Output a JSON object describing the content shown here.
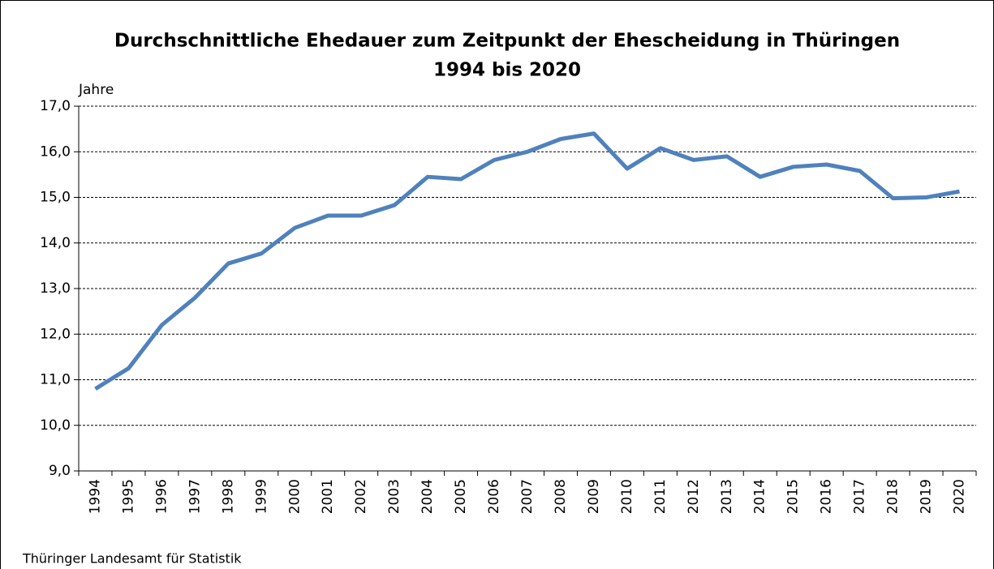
{
  "chart_data": {
    "type": "line",
    "title": "Durchschnittliche Ehedauer zum Zeitpunkt der Ehescheidung in Thüringen",
    "subtitle": "1994 bis 2020",
    "y_label": "Jahre",
    "source": "Thüringer Landesamt für Statistik",
    "categories": [
      "1994",
      "1995",
      "1996",
      "1997",
      "1998",
      "1999",
      "2000",
      "2001",
      "2002",
      "2003",
      "2004",
      "2005",
      "2006",
      "2007",
      "2008",
      "2009",
      "2010",
      "2011",
      "2012",
      "2013",
      "2014",
      "2015",
      "2016",
      "2017",
      "2018",
      "2019",
      "2020"
    ],
    "series": [
      {
        "color": "#4f81bd",
        "values": [
          10.8,
          11.25,
          12.2,
          12.8,
          13.55,
          13.77,
          14.33,
          14.6,
          14.6,
          14.83,
          15.45,
          15.4,
          15.82,
          16.0,
          16.28,
          16.4,
          15.63,
          16.08,
          15.82,
          15.9,
          15.45,
          15.67,
          15.72,
          15.58,
          14.98,
          15.0,
          15.13
        ]
      }
    ],
    "ylim": [
      9,
      17
    ],
    "yticks": [
      {
        "value": 9,
        "label": "9,0"
      },
      {
        "value": 10,
        "label": "10,0"
      },
      {
        "value": 11,
        "label": "11,0"
      },
      {
        "value": 12,
        "label": "12,0"
      },
      {
        "value": 13,
        "label": "13,0"
      },
      {
        "value": 14,
        "label": "14,0"
      },
      {
        "value": 15,
        "label": "15,0"
      },
      {
        "value": 16,
        "label": "16,0"
      },
      {
        "value": 17,
        "label": "17,0"
      }
    ],
    "grid": true
  }
}
